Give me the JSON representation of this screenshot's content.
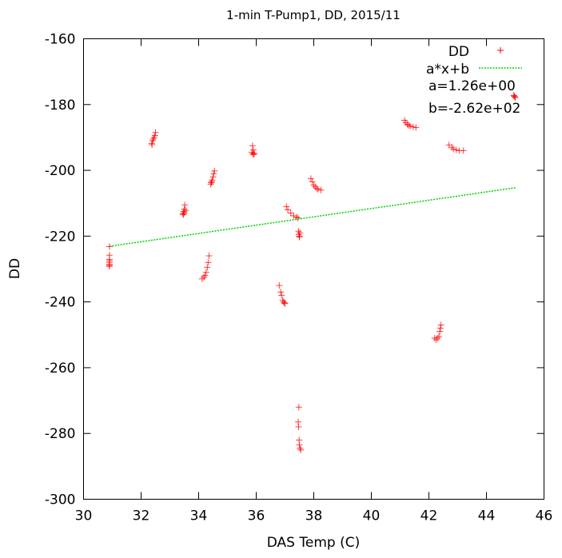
{
  "chart_data": {
    "type": "scatter",
    "title": "1-min T-Pump1, DD, 2015/11",
    "xlabel": "DAS Temp (C)",
    "ylabel": "DD",
    "xlim": [
      30,
      46
    ],
    "ylim": [
      -300,
      -160
    ],
    "xticks": [
      30,
      32,
      34,
      36,
      38,
      40,
      42,
      44,
      46
    ],
    "yticks": [
      -300,
      -280,
      -260,
      -240,
      -220,
      -200,
      -180,
      -160
    ],
    "legend_position": "top-right",
    "series": [
      {
        "name": "DD",
        "marker": "plus",
        "color": "#ff0000",
        "points": [
          [
            30.9,
            -223.2
          ],
          [
            30.9,
            -225.8
          ],
          [
            30.9,
            -227.1
          ],
          [
            30.9,
            -228.0
          ],
          [
            30.9,
            -228.6
          ],
          [
            30.9,
            -229.2
          ],
          [
            30.9,
            -227.5
          ],
          [
            30.9,
            -228.9
          ],
          [
            32.37,
            -191.8
          ],
          [
            32.4,
            -191.0
          ],
          [
            32.42,
            -190.5
          ],
          [
            32.45,
            -190.0
          ],
          [
            32.48,
            -189.4
          ],
          [
            32.5,
            -188.5
          ],
          [
            32.38,
            -192.2
          ],
          [
            33.45,
            -213.2
          ],
          [
            33.48,
            -212.5
          ],
          [
            33.5,
            -211.8
          ],
          [
            33.52,
            -210.5
          ],
          [
            33.5,
            -212.9
          ],
          [
            33.55,
            -212.2
          ],
          [
            33.47,
            -213.5
          ],
          [
            34.12,
            -233.0
          ],
          [
            34.18,
            -232.5
          ],
          [
            34.22,
            -232.0
          ],
          [
            34.26,
            -231.0
          ],
          [
            34.3,
            -229.5
          ],
          [
            34.33,
            -228.0
          ],
          [
            34.36,
            -226.0
          ],
          [
            34.42,
            -204.2
          ],
          [
            34.45,
            -203.5
          ],
          [
            34.47,
            -203.0
          ],
          [
            34.5,
            -202.0
          ],
          [
            34.52,
            -201.0
          ],
          [
            34.55,
            -200.2
          ],
          [
            34.44,
            -203.8
          ],
          [
            35.85,
            -194.5
          ],
          [
            35.88,
            -195.0
          ],
          [
            35.9,
            -193.8
          ],
          [
            35.92,
            -195.2
          ],
          [
            35.87,
            -192.5
          ],
          [
            35.93,
            -194.8
          ],
          [
            36.8,
            -235.0
          ],
          [
            36.85,
            -237.0
          ],
          [
            36.88,
            -238.0
          ],
          [
            36.92,
            -239.5
          ],
          [
            36.95,
            -240.0
          ],
          [
            37.0,
            -240.5
          ],
          [
            36.98,
            -240.3
          ],
          [
            37.05,
            -211.0
          ],
          [
            37.1,
            -212.0
          ],
          [
            37.2,
            -213.0
          ],
          [
            37.3,
            -213.8
          ],
          [
            37.4,
            -214.2
          ],
          [
            37.45,
            -214.5
          ],
          [
            37.48,
            -219.5
          ],
          [
            37.5,
            -220.0
          ],
          [
            37.52,
            -219.0
          ],
          [
            37.47,
            -218.5
          ],
          [
            37.5,
            -220.3
          ],
          [
            37.48,
            -272.0
          ],
          [
            37.46,
            -276.5
          ],
          [
            37.47,
            -278.0
          ],
          [
            37.49,
            -282.0
          ],
          [
            37.5,
            -283.5
          ],
          [
            37.52,
            -284.5
          ],
          [
            37.55,
            -285.0
          ],
          [
            37.9,
            -202.5
          ],
          [
            37.95,
            -203.5
          ],
          [
            38.0,
            -204.5
          ],
          [
            38.05,
            -205.0
          ],
          [
            38.1,
            -205.5
          ],
          [
            38.15,
            -205.8
          ],
          [
            38.25,
            -206.0
          ],
          [
            41.15,
            -184.8
          ],
          [
            41.2,
            -185.5
          ],
          [
            41.25,
            -186.0
          ],
          [
            41.3,
            -186.3
          ],
          [
            41.35,
            -186.6
          ],
          [
            41.45,
            -186.8
          ],
          [
            41.55,
            -187.0
          ],
          [
            42.2,
            -251.0
          ],
          [
            42.25,
            -251.5
          ],
          [
            42.3,
            -251.0
          ],
          [
            42.35,
            -250.5
          ],
          [
            42.38,
            -249.0
          ],
          [
            42.4,
            -248.0
          ],
          [
            42.42,
            -247.0
          ],
          [
            42.7,
            -192.3
          ],
          [
            42.8,
            -193.0
          ],
          [
            42.85,
            -193.5
          ],
          [
            42.95,
            -193.8
          ],
          [
            43.05,
            -194.0
          ],
          [
            43.2,
            -194.0
          ],
          [
            44.95,
            -177.2
          ],
          [
            44.98,
            -177.6
          ],
          [
            45.0,
            -177.9
          ],
          [
            44.96,
            -177.4
          ]
        ]
      },
      {
        "name": "a*x+b",
        "type": "line",
        "style": "dotted",
        "color": "#00d000",
        "a": 1.26,
        "b": -262,
        "x": [
          30.9,
          45.0
        ],
        "y": [
          -223.1,
          -205.3
        ]
      }
    ],
    "annotations": [
      "a=1.26e+00",
      "b=-2.62e+02"
    ]
  }
}
